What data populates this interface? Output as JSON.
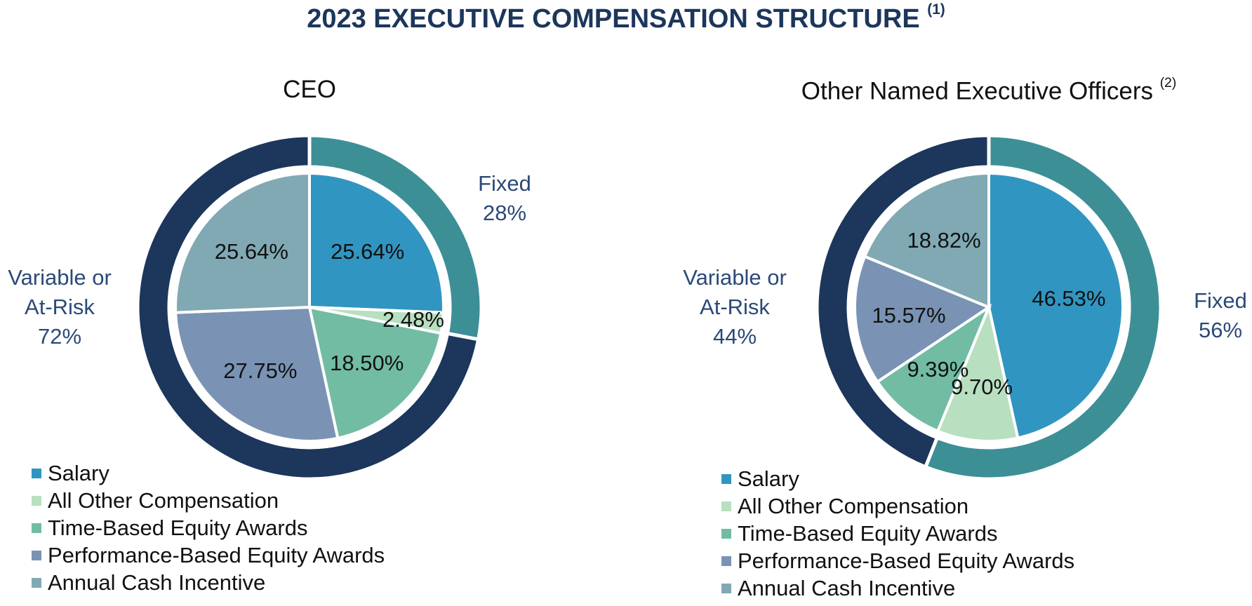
{
  "title": "2023 EXECUTIVE COMPENSATION STRUCTURE",
  "title_note": "(1)",
  "chart_data": [
    {
      "type": "pie",
      "title": "CEO",
      "categories": [
        "Salary",
        "All Other Compensation",
        "Time-Based Equity Awards",
        "Performance-Based Equity Awards",
        "Annual Cash Incentive"
      ],
      "values": [
        25.64,
        2.48,
        18.5,
        27.75,
        25.64
      ],
      "value_labels": [
        "25.64%",
        "2.48%",
        "18.50%",
        "27.75%",
        "25.64%"
      ],
      "colors": [
        "#3195c1",
        "#b8dfc0",
        "#72bca4",
        "#7a93b4",
        "#80a9b4"
      ],
      "outer": {
        "categories": [
          "Fixed",
          "Variable or At-Risk"
        ],
        "values": [
          28,
          72
        ],
        "value_labels": [
          "28%",
          "72%"
        ],
        "colors": [
          "#3d8f96",
          "#1c365c"
        ]
      }
    },
    {
      "type": "pie",
      "title": "Other Named Executive Officers",
      "title_note": "(2)",
      "categories": [
        "Salary",
        "All Other Compensation",
        "Time-Based Equity Awards",
        "Performance-Based Equity Awards",
        "Annual Cash Incentive"
      ],
      "values": [
        46.53,
        9.7,
        9.39,
        15.57,
        18.82
      ],
      "value_labels": [
        "46.53%",
        "9.70%",
        "9.39%",
        "15.57%",
        "18.82%"
      ],
      "colors": [
        "#3195c1",
        "#b8dfc0",
        "#72bca4",
        "#7a93b4",
        "#80a9b4"
      ],
      "outer": {
        "categories": [
          "Fixed",
          "Variable or At-Risk"
        ],
        "values": [
          56,
          44
        ],
        "value_labels": [
          "56%",
          "44%"
        ],
        "colors": [
          "#3d8f96",
          "#1c365c"
        ]
      }
    }
  ]
}
